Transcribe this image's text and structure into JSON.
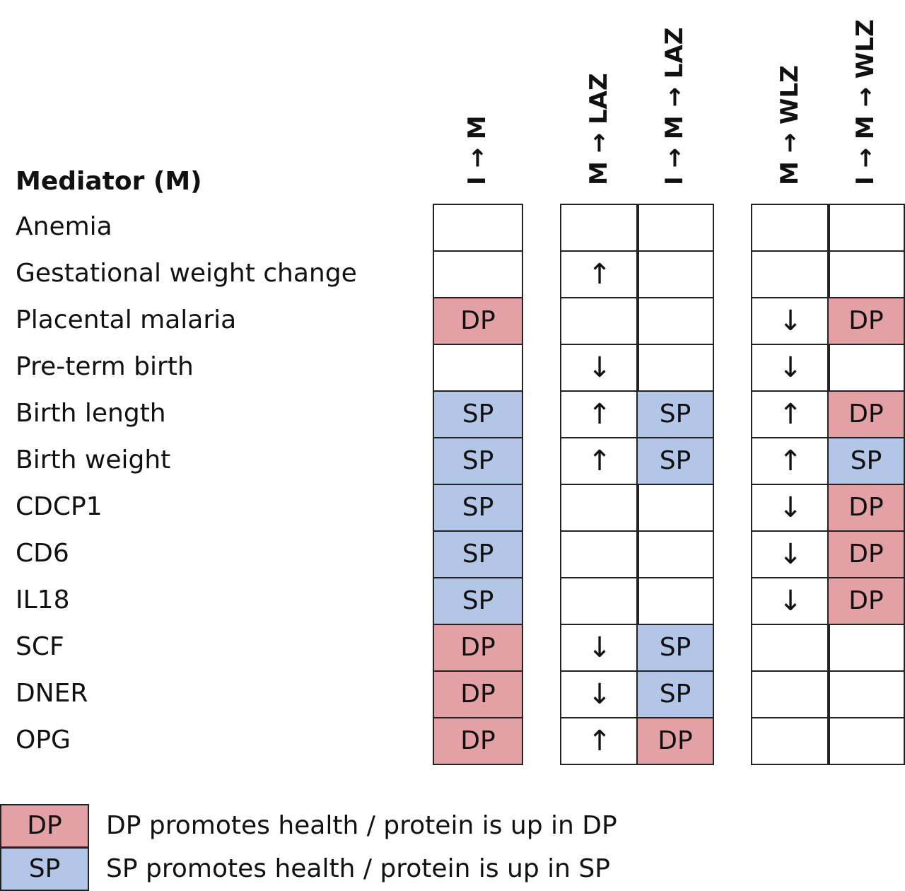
{
  "title": "Mediator (M)",
  "colors": {
    "DP": "#e3a1a6",
    "SP": "#b4c6e7"
  },
  "columns": [
    {
      "key": "c1",
      "label": "I → M"
    },
    {
      "key": "c2",
      "label": "M → LAZ"
    },
    {
      "key": "c3",
      "label": "I → M → LAZ"
    },
    {
      "key": "c4",
      "label": "M → WLZ"
    },
    {
      "key": "c5",
      "label": "I → M → WLZ"
    }
  ],
  "rows": [
    {
      "label": "Anemia",
      "cells": [
        "",
        "",
        "",
        "",
        ""
      ]
    },
    {
      "label": "Gestational weight change",
      "cells": [
        "",
        "↑",
        "",
        "",
        ""
      ]
    },
    {
      "label": "Placental malaria",
      "cells": [
        "DP",
        "",
        "",
        "↓",
        "DP"
      ]
    },
    {
      "label": "Pre-term birth",
      "cells": [
        "",
        "↓",
        "",
        "↓",
        ""
      ]
    },
    {
      "label": "Birth length",
      "cells": [
        "SP",
        "↑",
        "SP",
        "↑",
        "DP"
      ]
    },
    {
      "label": "Birth weight",
      "cells": [
        "SP",
        "↑",
        "SP",
        "↑",
        "SP"
      ]
    },
    {
      "label": "CDCP1",
      "cells": [
        "SP",
        "",
        "",
        "↓",
        "DP"
      ]
    },
    {
      "label": "CD6",
      "cells": [
        "SP",
        "",
        "",
        "↓",
        "DP"
      ]
    },
    {
      "label": "IL18",
      "cells": [
        "SP",
        "",
        "",
        "↓",
        "DP"
      ]
    },
    {
      "label": "SCF",
      "cells": [
        "DP",
        "↓",
        "SP",
        "",
        ""
      ]
    },
    {
      "label": "DNER",
      "cells": [
        "DP",
        "↓",
        "SP",
        "",
        ""
      ]
    },
    {
      "label": "OPG",
      "cells": [
        "DP",
        "↑",
        "DP",
        "",
        ""
      ]
    }
  ],
  "legend": [
    {
      "key": "DP",
      "box": "DP",
      "text": "DP promotes health / protein is up in DP"
    },
    {
      "key": "SP",
      "box": "SP",
      "text": "SP promotes health / protein is up in SP"
    }
  ]
}
